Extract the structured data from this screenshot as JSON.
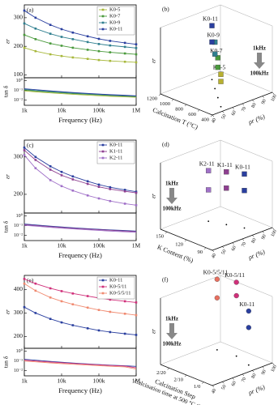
{
  "chart_data": [
    {
      "type": "line",
      "label": "(a)",
      "log_x": true,
      "legend": "upper right",
      "x": [
        1000,
        2000,
        5000,
        10000,
        20000,
        50000,
        100000,
        200000,
        500000,
        1000000
      ],
      "xlim": [
        1000,
        1000000
      ],
      "xticks": [
        {
          "value": 1000,
          "label": "1k"
        },
        {
          "value": 10000,
          "label": "10k"
        },
        {
          "value": 100000,
          "label": "100k"
        },
        {
          "value": 1000000,
          "label": "1M"
        }
      ],
      "xlabel": "Frequency (Hz)",
      "ylabel": "εr",
      "ylim": [
        90,
        345
      ],
      "yticks": [
        100,
        200,
        300
      ],
      "series": [
        {
          "name": "K0-5",
          "color": "#a8b83c",
          "values": [
            195,
            183,
            172,
            166,
            161,
            156,
            152,
            149,
            146,
            144
          ]
        },
        {
          "name": "K0-7",
          "color": "#4a9a3c",
          "values": [
            240,
            225,
            210,
            202,
            195,
            188,
            183,
            179,
            175,
            172
          ]
        },
        {
          "name": "K0-9",
          "color": "#2f7f8f",
          "values": [
            280,
            262,
            244,
            233,
            225,
            215,
            208,
            203,
            198,
            194
          ]
        },
        {
          "name": "K0-11",
          "color": "#2a3f9f",
          "values": [
            325,
            300,
            275,
            260,
            248,
            235,
            226,
            219,
            212,
            207
          ]
        }
      ],
      "lower_panel": {
        "ylabel": "tan δ",
        "log_y": true,
        "ylim": [
          0.003,
          2
        ],
        "yticks": [
          {
            "value": 1,
            "label": "10⁰"
          },
          {
            "value": 0.1,
            "label": "10⁻¹"
          },
          {
            "value": 0.01,
            "label": "10⁻²"
          }
        ],
        "series": [
          {
            "color": "#a8b83c",
            "values": [
              0.09,
              0.072,
              0.056,
              0.047,
              0.04,
              0.033,
              0.029,
              0.025,
              0.022,
              0.02
            ]
          },
          {
            "color": "#4a9a3c",
            "values": [
              0.11,
              0.088,
              0.068,
              0.057,
              0.048,
              0.04,
              0.035,
              0.03,
              0.026,
              0.023
            ]
          },
          {
            "color": "#2f7f8f",
            "values": [
              0.13,
              0.1,
              0.078,
              0.065,
              0.055,
              0.045,
              0.039,
              0.034,
              0.029,
              0.026
            ]
          },
          {
            "color": "#2a3f9f",
            "values": [
              0.15,
              0.12,
              0.09,
              0.075,
              0.062,
              0.05,
              0.043,
              0.037,
              0.032,
              0.028
            ]
          }
        ]
      }
    },
    {
      "type": "scatter3d",
      "label": "(b)",
      "xlabel": "Calcination T (°C)",
      "ylabel": "ρr (%)",
      "zlabel": "εr",
      "xlim": [
        400,
        1200
      ],
      "xticks": [
        400,
        600,
        800,
        1000,
        1200
      ],
      "ylim": [
        40,
        100
      ],
      "yticks": [
        40,
        50,
        60,
        70,
        80,
        90,
        100
      ],
      "zlim": [
        0,
        400
      ],
      "annotations": [
        "1kHz",
        "100kHz"
      ],
      "points": [
        {
          "label": "K0-5",
          "color": "#b8b030",
          "x": 500,
          "y": 55,
          "z": [
            195,
            152
          ]
        },
        {
          "label": "K0-7",
          "color": "#4a9a3c",
          "x": 700,
          "y": 65,
          "z": [
            240,
            183
          ]
        },
        {
          "label": "K0-9",
          "color": "#2f7f8f",
          "x": 900,
          "y": 75,
          "z": [
            280,
            208
          ]
        },
        {
          "label": "K0-11",
          "color": "#2a3f9f",
          "x": 1100,
          "y": 85,
          "z": [
            325,
            226
          ]
        }
      ]
    },
    {
      "type": "line",
      "label": "(c)",
      "log_x": true,
      "legend": "upper right",
      "x": [
        1000,
        2000,
        5000,
        10000,
        20000,
        50000,
        100000,
        200000,
        500000,
        1000000
      ],
      "xlim": [
        1000,
        1000000
      ],
      "xticks": [
        {
          "value": 1000,
          "label": "1k"
        },
        {
          "value": 10000,
          "label": "10k"
        },
        {
          "value": 100000,
          "label": "100k"
        },
        {
          "value": 1000000,
          "label": "1M"
        }
      ],
      "xlabel": "Frequency (Hz)",
      "ylabel": "εr",
      "ylim": [
        150,
        345
      ],
      "yticks": [
        200,
        300
      ],
      "series": [
        {
          "name": "K0-11",
          "color": "#2a3f9f",
          "values": [
            325,
            300,
            275,
            260,
            248,
            235,
            226,
            219,
            212,
            207
          ]
        },
        {
          "name": "K1-11",
          "color": "#8e3f90",
          "values": [
            318,
            292,
            266,
            251,
            240,
            228,
            220,
            214,
            208,
            204
          ]
        },
        {
          "name": "K2-11",
          "color": "#a070c8",
          "values": [
            305,
            270,
            238,
            222,
            210,
            197,
            189,
            182,
            175,
            171
          ]
        }
      ],
      "lower_panel": {
        "ylabel": "tan δ",
        "log_y": true,
        "ylim": [
          0.003,
          2
        ],
        "yticks": [
          {
            "value": 1,
            "label": "10⁰"
          },
          {
            "value": 0.1,
            "label": "10⁻¹"
          },
          {
            "value": 0.01,
            "label": "10⁻²"
          }
        ],
        "series": [
          {
            "color": "#2a3f9f",
            "values": [
              0.15,
              0.12,
              0.09,
              0.075,
              0.062,
              0.05,
              0.043,
              0.037,
              0.032,
              0.028
            ]
          },
          {
            "color": "#8e3f90",
            "values": [
              0.13,
              0.105,
              0.08,
              0.066,
              0.055,
              0.045,
              0.039,
              0.034,
              0.029,
              0.025
            ]
          },
          {
            "color": "#a070c8",
            "values": [
              0.11,
              0.09,
              0.068,
              0.056,
              0.047,
              0.038,
              0.033,
              0.028,
              0.024,
              0.021
            ]
          }
        ]
      }
    },
    {
      "type": "scatter3d",
      "label": "(d)",
      "xlabel": "K Content (%)",
      "ylabel": "ρr (%)",
      "zlabel": "εr",
      "xlim": [
        80,
        160
      ],
      "xticks": [
        90,
        120,
        150
      ],
      "ylim": [
        40,
        100
      ],
      "yticks": [
        40,
        50,
        60,
        70,
        80,
        90,
        100
      ],
      "zlim": [
        0,
        400
      ],
      "annotations": [
        "1kHz",
        "100kHz"
      ],
      "points": [
        {
          "label": "K0-11",
          "color": "#2a3f9f",
          "x": 100,
          "y": 85,
          "z": [
            325,
            226
          ]
        },
        {
          "label": "K1-11",
          "color": "#8e3f90",
          "x": 120,
          "y": 80,
          "z": [
            318,
            220
          ]
        },
        {
          "label": "K2-11",
          "color": "#a070c8",
          "x": 140,
          "y": 75,
          "z": [
            305,
            189
          ]
        }
      ]
    },
    {
      "type": "line",
      "label": "(e)",
      "log_x": true,
      "legend": "upper right",
      "x": [
        1000,
        2000,
        5000,
        10000,
        20000,
        50000,
        100000,
        200000,
        500000,
        1000000
      ],
      "xlim": [
        1000,
        1000000
      ],
      "xticks": [
        {
          "value": 1000,
          "label": "1k"
        },
        {
          "value": 10000,
          "label": "10k"
        },
        {
          "value": 100000,
          "label": "100k"
        },
        {
          "value": 1000000,
          "label": "1M"
        }
      ],
      "xlabel": "Frequency (Hz)",
      "ylabel": "εr",
      "ylim": [
        150,
        460
      ],
      "yticks": [
        200,
        300,
        400
      ],
      "series": [
        {
          "name": "K0-11",
          "color": "#2a3f9f",
          "values": [
            325,
            300,
            275,
            260,
            248,
            235,
            226,
            219,
            212,
            207
          ]
        },
        {
          "name": "K0-5/11",
          "color": "#d0307a",
          "values": [
            445,
            425,
            405,
            393,
            383,
            372,
            364,
            357,
            350,
            345
          ]
        },
        {
          "name": "K0-5/5/11",
          "color": "#f08a70",
          "values": [
            425,
            395,
            366,
            350,
            337,
            323,
            313,
            305,
            297,
            291
          ]
        }
      ],
      "lower_panel": {
        "ylabel": "tan δ",
        "log_y": true,
        "ylim": [
          0.003,
          2
        ],
        "yticks": [
          {
            "value": 1,
            "label": "10⁰"
          },
          {
            "value": 0.1,
            "label": "10⁻¹"
          },
          {
            "value": 0.01,
            "label": "10⁻²"
          }
        ],
        "series": [
          {
            "color": "#2a3f9f",
            "values": [
              0.15,
              0.12,
              0.09,
              0.075,
              0.062,
              0.05,
              0.043,
              0.037,
              0.032,
              0.028
            ]
          },
          {
            "color": "#d0307a",
            "values": [
              0.12,
              0.1,
              0.078,
              0.066,
              0.056,
              0.046,
              0.04,
              0.035,
              0.03,
              0.02
            ]
          },
          {
            "color": "#f08a70",
            "values": [
              0.1,
              0.082,
              0.064,
              0.054,
              0.046,
              0.038,
              0.033,
              0.029,
              0.025,
              0.015
            ]
          }
        ]
      }
    },
    {
      "type": "scatter3d",
      "label": "(f)",
      "xlabel": "Calcination Step",
      "xlabel2": "Calcination time at 500 °C (hours)",
      "ylabel": "ρr (%)",
      "zlabel": "εr",
      "xlim": [
        0.5,
        3.5
      ],
      "xticks": [
        {
          "value": 1,
          "label": "1/0"
        },
        {
          "value": 2,
          "label": "2/10"
        },
        {
          "value": 3,
          "label": "2/20"
        }
      ],
      "ylim": [
        40,
        100
      ],
      "yticks": [
        40,
        50,
        60,
        70,
        80,
        90,
        100
      ],
      "zlim": [
        0,
        400
      ],
      "annotations": [
        "1kHz",
        "100kHz"
      ],
      "points": [
        {
          "label": "K0-11",
          "color": "#2a3f9f",
          "x": 1,
          "y": 85,
          "z": [
            325,
            226
          ]
        },
        {
          "label": "K0-5/11",
          "color": "#d0307a",
          "x": 2,
          "y": 90,
          "z": [
            445,
            364
          ]
        },
        {
          "label": "K0-5/5/11",
          "color": "#e87060",
          "x": 3,
          "y": 88,
          "z": [
            425,
            313
          ]
        }
      ]
    }
  ]
}
